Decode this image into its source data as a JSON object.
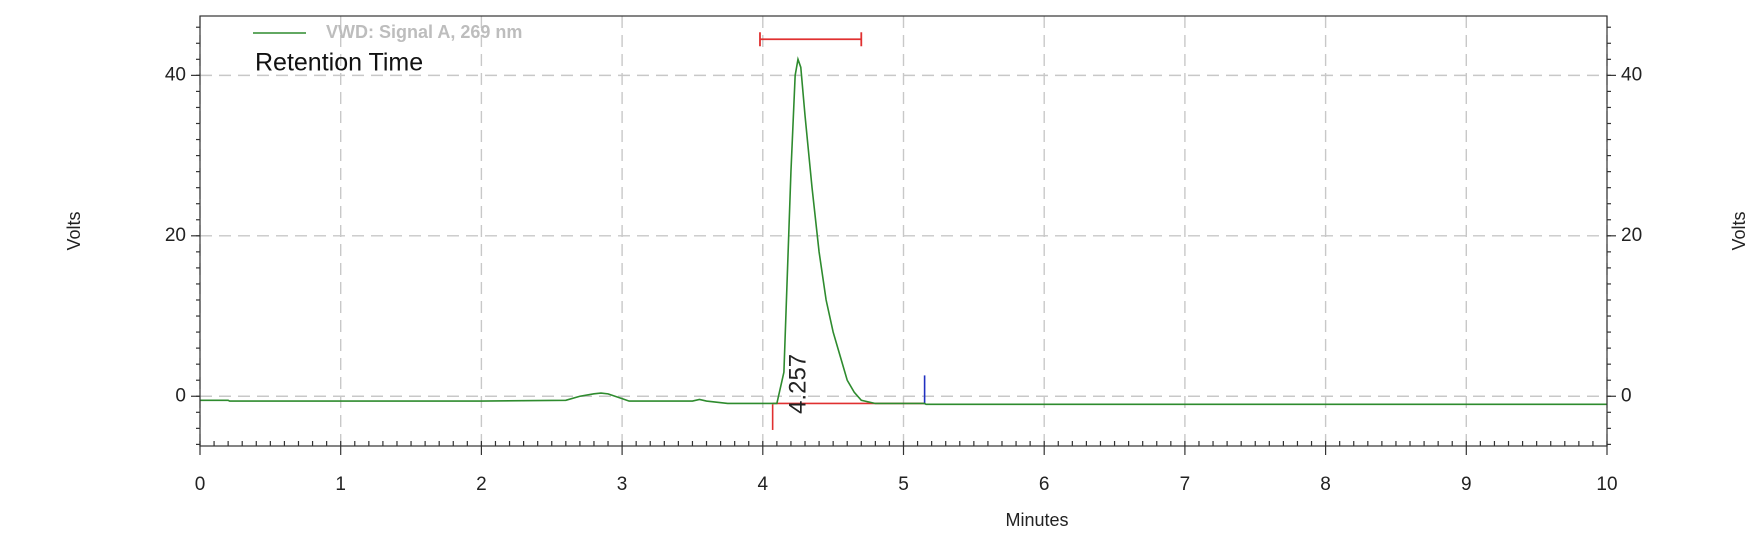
{
  "chart_data": {
    "type": "line",
    "legend_label": "VWD: Signal A, 269 nm",
    "annotation": "Retention Time",
    "xlabel": "Minutes",
    "ylabel": "Volts",
    "y2label": "Volts",
    "x": [
      0,
      0.2,
      0.21,
      1,
      2,
      2.6,
      2.7,
      2.8,
      2.85,
      2.9,
      3.0,
      3.05,
      3.5,
      3.55,
      3.6,
      3.75,
      4.0,
      4.1,
      4.15,
      4.2,
      4.23,
      4.25,
      4.27,
      4.3,
      4.35,
      4.4,
      4.45,
      4.5,
      4.55,
      4.6,
      4.65,
      4.7,
      4.8,
      5.15,
      5.16,
      6,
      8,
      10
    ],
    "series": [
      {
        "name": "VWD: Signal A, 269 nm",
        "color": "#2e8b2e",
        "values": [
          -0.5,
          -0.5,
          -0.6,
          -0.6,
          -0.6,
          -0.5,
          0,
          0.3,
          0.4,
          0.3,
          -0.3,
          -0.6,
          -0.6,
          -0.4,
          -0.6,
          -0.9,
          -0.9,
          -0.9,
          3,
          28,
          40,
          42,
          41,
          35,
          26,
          18,
          12,
          8,
          5,
          2,
          0.5,
          -0.5,
          -0.9,
          -0.9,
          -1.0,
          -1.0,
          -1.0,
          -1.0
        ]
      }
    ],
    "peaks": [
      {
        "retention_time": 4.257,
        "label_y": -2.2
      }
    ],
    "baseline": {
      "x": [
        4.07,
        5.15
      ],
      "y": [
        -0.9,
        -0.9
      ],
      "color": "#e03030"
    },
    "start_marker": {
      "x": 4.07,
      "y": [
        -1.0,
        -4.2
      ],
      "color": "#e03030"
    },
    "end_marker": {
      "x": 5.15,
      "y": [
        2.6,
        -1.0
      ],
      "color": "#2030c0"
    },
    "window": {
      "x": [
        3.98,
        4.7
      ],
      "y": 44.5,
      "color": "#e03030"
    },
    "xlim": [
      0,
      10
    ],
    "xticks": [
      0,
      1,
      2,
      3,
      4,
      5,
      6,
      7,
      8,
      9,
      10
    ],
    "x_minor_step": 0.1,
    "ylim": [
      -6.2,
      47.4
    ],
    "yticks": [
      0,
      20,
      40
    ],
    "y2lim": [
      -6.2,
      47.4
    ],
    "y2ticks": [
      0,
      20,
      40
    ],
    "y_minor_step": 2,
    "grid": true
  }
}
